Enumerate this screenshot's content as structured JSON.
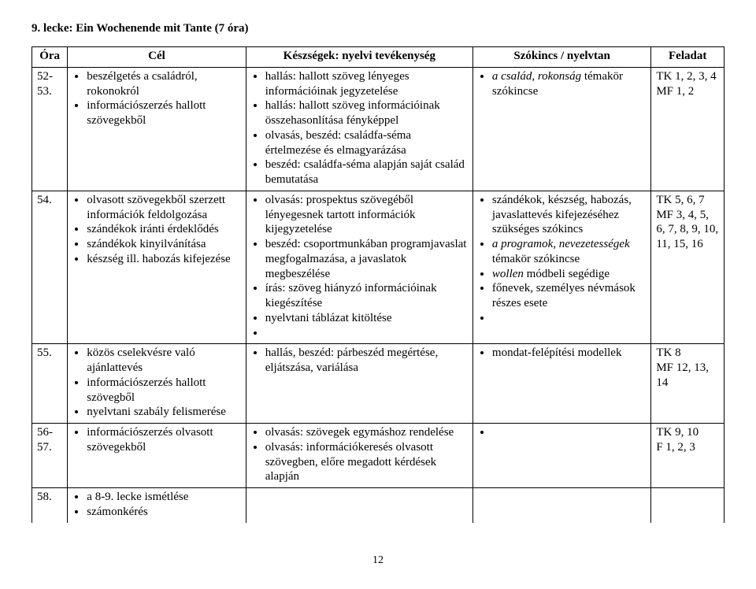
{
  "lesson_title": "9. lecke:  Ein Wochenende mit Tante  (7 óra)",
  "headers": {
    "ora": "Óra",
    "cel": "Cél",
    "kesz": "Készségek: nyelvi tevékenység",
    "szo": "Szókincs / nyelvtan",
    "fel": "Feladat"
  },
  "rows": [
    {
      "ora": "52-53.",
      "cel": [
        "beszélgetés a családról, rokonokról",
        "információszerzés hallott szövegekből"
      ],
      "kesz": [
        "hallás: hallott szöveg lényeges információinak jegyzetelése",
        "hallás: hallott szöveg információinak összehasonlítása fényképpel",
        "olvasás, beszéd: családfa-séma értelmezése és elmagyarázása",
        "beszéd: családfa-séma alapján saját család bemutatása"
      ],
      "szo": [
        "a család,  rokonság témakör szókincse"
      ],
      "fel": [
        "TK 1, 2, 3, 4",
        "MF 1, 2"
      ]
    },
    {
      "ora": "54.",
      "cel": [
        "olvasott szövegekből szerzett információk feldolgozása",
        "szándékok iránti érdeklődés",
        "szándékok kinyilvánítása",
        "készség ill. habozás kifejezése"
      ],
      "kesz": [
        "olvasás: prospektus szövegéből lényegesnek tartott információk kijegyzetelése",
        "beszéd: csoportmunkában programjavaslat megfogalmazása, a javaslatok megbeszélése",
        "írás: szöveg hiányzó információinak kiegészítése",
        "nyelvtani táblázat kitöltése",
        ""
      ],
      "szo": [
        "szándékok, készség, habozás, javaslattevés kifejezéséhez szükséges szókincs",
        "a programok, nevezetességek témakör szókincse",
        "wollen módbeli segédige",
        "főnevek, személyes névmások részes esete",
        ""
      ],
      "fel": [
        "TK 5, 6, 7",
        "MF 3, 4, 5, 6, 7, 8, 9, 10, 11, 15, 16"
      ]
    },
    {
      "ora": "55.",
      "cel": [
        "közös cselekvésre való ajánlattevés",
        "információszerzés hallott szövegből",
        "nyelvtani szabály felismerése"
      ],
      "kesz": [
        "hallás, beszéd: párbeszéd megértése, eljátszása, variálása"
      ],
      "szo": [
        "mondat-felépítési modellek"
      ],
      "fel": [
        "TK 8",
        "MF 12, 13, 14"
      ]
    },
    {
      "ora": "56-57.",
      "cel": [
        "információszerzés olvasott szövegekből"
      ],
      "kesz": [
        "olvasás: szövegek egymáshoz rendelése",
        "olvasás: információkeresés olvasott szövegben, előre megadott kérdések alapján"
      ],
      "szo": [
        ""
      ],
      "fel": [
        "TK 9, 10",
        "F 1, 2, 3"
      ]
    },
    {
      "ora": "58.",
      "cel": [
        "a 8-9. lecke ismétlése",
        "számonkérés"
      ],
      "kesz": [],
      "szo": [],
      "fel": []
    }
  ],
  "page_number": "12"
}
